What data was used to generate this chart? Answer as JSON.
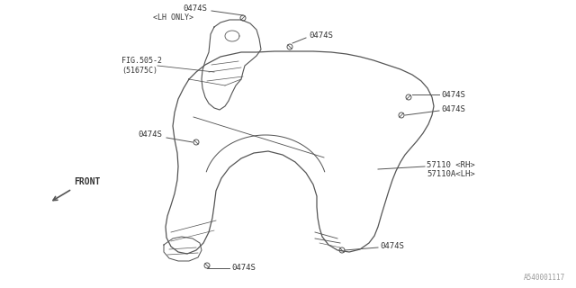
{
  "bg_color": "#ffffff",
  "line_color": "#555555",
  "text_color": "#333333",
  "diagram_id": "A540001117",
  "labels": {
    "top_bolt_lh": "0474S",
    "lh_only": "<LH ONLY>",
    "fig_ref_1": "FIG.505-2",
    "fig_ref_2": "(51675C)",
    "top_bolt_center": "0474S",
    "right_bolt_upper": "0474S",
    "right_bolt_mid": "0474S",
    "left_mid_bolt": "0474S",
    "fender_rh": "57110 <RH>",
    "fender_lh": "57110A<LH>",
    "bottom_right_bolt": "0474S",
    "bottom_center_bolt": "0474S",
    "front_arrow": "FRONT"
  }
}
